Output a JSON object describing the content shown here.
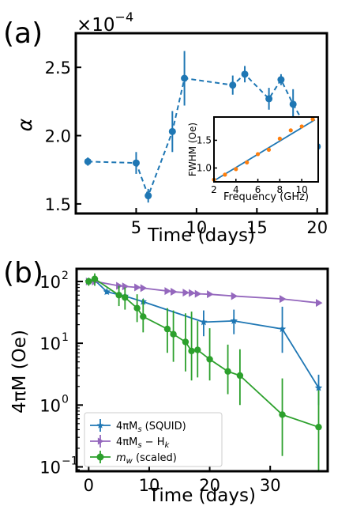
{
  "colors": {
    "blue": "#1f77b4",
    "orange": "#ff7f0e",
    "purple": "#9467bd",
    "green": "#2ca02c"
  },
  "chart_data": [
    {
      "panel_label": "(a)",
      "type": "scatter",
      "xlabel": "Time (days)",
      "ylabel": "α",
      "y_exponent_label": "×10",
      "y_exponent_power": "−4",
      "xlim": [
        0,
        20.8
      ],
      "ylim": [
        1.43,
        2.75
      ],
      "xticks": [
        5,
        10,
        15,
        20
      ],
      "xtick_labels": [
        "5",
        "10",
        "15",
        "20"
      ],
      "yticks": [
        1.5,
        2.0,
        2.5
      ],
      "ytick_labels": [
        "1.5",
        "2.0",
        "2.5"
      ],
      "series": [
        {
          "style": "dashed-line-markers-errorbars",
          "color": "#1f77b4",
          "x": [
            1,
            5,
            6,
            8,
            9,
            13,
            14,
            16,
            17,
            18,
            20
          ],
          "y": [
            1.81,
            1.8,
            1.56,
            2.03,
            2.42,
            2.37,
            2.45,
            2.27,
            2.41,
            2.23,
            1.92
          ],
          "yerr": [
            0.03,
            0.08,
            0.05,
            0.15,
            0.2,
            0.07,
            0.06,
            0.08,
            0.04,
            0.11,
            0.12
          ]
        }
      ],
      "inset": {
        "type": "scatter",
        "xlabel": "Frequency (GHz)",
        "ylabel": "FWHM (Oe)",
        "xlim": [
          2,
          11.5
        ],
        "ylim": [
          0.75,
          1.92
        ],
        "xticks": [
          2,
          4,
          6,
          8,
          10
        ],
        "xtick_labels": [
          "2",
          "4",
          "6",
          "8",
          "10"
        ],
        "yticks": [
          1.0,
          1.5
        ],
        "ytick_labels": [
          "1.0",
          "1.5"
        ],
        "points": {
          "color": "#ff7f0e",
          "x": [
            2,
            3,
            4,
            5,
            6,
            7,
            8,
            9,
            10,
            11
          ],
          "y": [
            0.79,
            0.88,
            0.98,
            1.1,
            1.25,
            1.33,
            1.53,
            1.68,
            1.75,
            1.88
          ]
        },
        "fit_line": {
          "color": "#1f77b4",
          "x": [
            2,
            11.2
          ],
          "y": [
            0.77,
            1.87
          ]
        }
      }
    },
    {
      "panel_label": "(b)",
      "type": "line",
      "xlabel": "Time (days)",
      "ylabel": "4πM (Oe)",
      "log_y": true,
      "xlim": [
        -2,
        39.5
      ],
      "ylim": [
        0.085,
        160
      ],
      "xticks": [
        0,
        10,
        20,
        30
      ],
      "xtick_labels": [
        "0",
        "10",
        "20",
        "30"
      ],
      "yticks": [
        0.1,
        1,
        10,
        100
      ],
      "ytick_base": "10",
      "ytick_powers": [
        "−1",
        "0",
        "1",
        "2"
      ],
      "legend_position": "lower-left",
      "series": [
        {
          "name": "4πMs (SQUID)",
          "legend_main": "4πM",
          "legend_sub": "s",
          "legend_rest": " (SQUID)",
          "color": "#1f77b4",
          "marker": "star",
          "x": [
            0,
            1,
            3,
            6,
            9,
            19,
            24,
            32,
            38
          ],
          "y": [
            100,
            105,
            68,
            58,
            47,
            22,
            23,
            17,
            1.9
          ],
          "yerr_lo": [
            8,
            10,
            6,
            6,
            5,
            9,
            9,
            10,
            0.9
          ],
          "yerr_hi": [
            8,
            10,
            6,
            6,
            5,
            12,
            12,
            22,
            1.2
          ]
        },
        {
          "name": "4πMs − Hk",
          "legend_main": "4πM",
          "legend_sub": "s",
          "legend_rest": " − H",
          "legend_sub2": "k",
          "color": "#9467bd",
          "marker": "triangle-right",
          "x": [
            0,
            1,
            5,
            6,
            8,
            9,
            13,
            14,
            16,
            17,
            18,
            20,
            24,
            32,
            38
          ],
          "y": [
            100,
            100,
            85,
            83,
            80,
            78,
            70,
            68,
            66,
            65,
            63,
            62,
            58,
            52,
            45
          ],
          "yerr_lo": [
            0,
            0,
            0,
            0,
            0,
            0,
            0,
            0,
            0,
            0,
            0,
            0,
            0,
            0,
            0
          ],
          "yerr_hi": [
            0,
            0,
            0,
            0,
            0,
            0,
            0,
            0,
            0,
            0,
            0,
            0,
            0,
            0,
            0
          ]
        },
        {
          "name": "mw (scaled)",
          "legend_main": "m",
          "legend_sub": "w",
          "legend_rest": " (scaled)",
          "color": "#2ca02c",
          "marker": "circle",
          "x": [
            0,
            1,
            5,
            6,
            8,
            9,
            13,
            14,
            16,
            17,
            18,
            20,
            23,
            25,
            32,
            38
          ],
          "y": [
            100,
            110,
            60,
            55,
            37,
            27,
            17,
            14,
            10.5,
            7.5,
            7.8,
            5.5,
            3.5,
            3.0,
            0.7,
            0.44
          ],
          "yerr_lo": [
            15,
            25,
            20,
            20,
            15,
            12,
            10,
            9,
            7,
            5,
            5,
            3,
            2,
            2,
            0.55,
            0.36
          ],
          "yerr_hi": [
            15,
            25,
            25,
            25,
            25,
            25,
            20,
            20,
            20,
            25,
            15,
            12,
            6,
            5,
            2.0,
            1.3
          ]
        }
      ]
    }
  ]
}
